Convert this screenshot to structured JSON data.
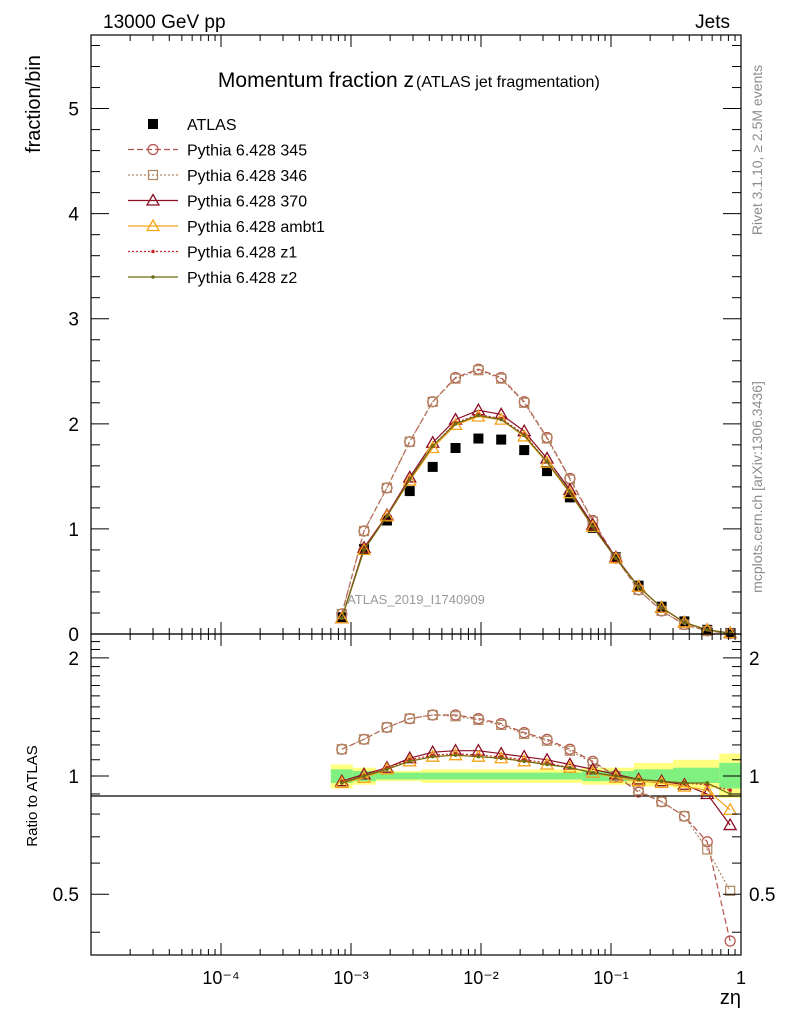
{
  "header": {
    "energy_label": "13000 GeV pp",
    "category_label": "Jets"
  },
  "side_labels": {
    "rivet": "Rivet 3.1.10, ≥ 2.5M events",
    "mcplots": "mcplots.cern.ch [arXiv:1306.3436]"
  },
  "watermark": "ATLAS_2019_I1740909",
  "chart_data": [
    {
      "type": "scatter",
      "panel": "main",
      "title": "Momentum fraction z",
      "subtitle": "(ATLAS jet fragmentation)",
      "xlabel": "zη",
      "ylabel": "fraction/bin",
      "x_scale": "log",
      "xlim": [
        1e-05,
        1
      ],
      "ylim": [
        0,
        5.7
      ],
      "x_tick_labels": [
        "10⁻⁴",
        "10⁻³",
        "10⁻²",
        "10⁻¹",
        "1"
      ],
      "y_tick_labels": [
        "0",
        "1",
        "2",
        "3",
        "4",
        "5"
      ],
      "legend_position": "top-left",
      "x": [
        0.00085,
        0.00126,
        0.00189,
        0.00283,
        0.00425,
        0.00637,
        0.00955,
        0.0143,
        0.0215,
        0.0322,
        0.0483,
        0.0724,
        0.109,
        0.163,
        0.245,
        0.367,
        0.55,
        0.825
      ],
      "series": [
        {
          "name": "ATLAS",
          "color": "#000000",
          "marker": "square-filled",
          "line": "none",
          "values": [
            0.16,
            0.81,
            1.08,
            1.36,
            1.59,
            1.77,
            1.86,
            1.85,
            1.75,
            1.55,
            1.3,
            1.01,
            0.73,
            0.46,
            0.26,
            0.12,
            0.04,
            0.01
          ]
        },
        {
          "name": "Pythia 6.428 345",
          "color": "#b5524b",
          "marker": "circle-open",
          "line": "dashed",
          "values": [
            0.19,
            0.98,
            1.39,
            1.83,
            2.21,
            2.44,
            2.52,
            2.44,
            2.21,
            1.87,
            1.48,
            1.08,
            0.72,
            0.42,
            0.22,
            0.09,
            0.03,
            0.004
          ]
        },
        {
          "name": "Pythia 6.428 346",
          "color": "#b08860",
          "marker": "square-open",
          "line": "dotted",
          "values": [
            0.19,
            0.98,
            1.39,
            1.83,
            2.21,
            2.43,
            2.51,
            2.43,
            2.2,
            1.86,
            1.47,
            1.07,
            0.72,
            0.42,
            0.22,
            0.09,
            0.03,
            0.005
          ]
        },
        {
          "name": "Pythia 6.428 370",
          "color": "#8b0e24",
          "marker": "triangle-open",
          "line": "solid",
          "values": [
            0.15,
            0.82,
            1.13,
            1.49,
            1.82,
            2.04,
            2.13,
            2.09,
            1.93,
            1.67,
            1.37,
            1.04,
            0.73,
            0.45,
            0.25,
            0.11,
            0.04,
            0.008
          ]
        },
        {
          "name": "Pythia 6.428 ambt1",
          "color": "#f5a31a",
          "marker": "triangle-open",
          "line": "solid",
          "values": [
            0.15,
            0.8,
            1.12,
            1.46,
            1.77,
            1.99,
            2.07,
            2.04,
            1.88,
            1.63,
            1.34,
            1.02,
            0.72,
            0.45,
            0.25,
            0.11,
            0.04,
            0.008
          ]
        },
        {
          "name": "Pythia 6.428 z1",
          "color": "#c62828",
          "marker": "dot",
          "line": "dotted",
          "values": [
            0.15,
            0.81,
            1.13,
            1.48,
            1.79,
            2.01,
            2.09,
            2.05,
            1.9,
            1.64,
            1.35,
            1.02,
            0.72,
            0.45,
            0.25,
            0.11,
            0.04,
            0.009
          ]
        },
        {
          "name": "Pythia 6.428 z2",
          "color": "#6b6b10",
          "marker": "dot",
          "line": "solid",
          "values": [
            0.15,
            0.8,
            1.12,
            1.47,
            1.79,
            2.0,
            2.08,
            2.04,
            1.89,
            1.64,
            1.35,
            1.02,
            0.72,
            0.45,
            0.25,
            0.11,
            0.04,
            0.009
          ]
        }
      ]
    },
    {
      "type": "scatter",
      "panel": "ratio",
      "ylabel": "Ratio to ATLAS",
      "x_scale": "log",
      "xlim": [
        1e-05,
        1
      ],
      "ylim": [
        0.35,
        2.3
      ],
      "y_tick_labels": [
        "0.5",
        "1",
        "2"
      ],
      "x": [
        0.00085,
        0.00126,
        0.00189,
        0.00283,
        0.00425,
        0.00637,
        0.00955,
        0.0143,
        0.0215,
        0.0322,
        0.0483,
        0.0724,
        0.109,
        0.163,
        0.245,
        0.367,
        0.55,
        0.825
      ],
      "bands": [
        {
          "color": "#ffff80",
          "bins": [
            [
              0.0007,
              0.00103,
              0.93,
              1.07
            ],
            [
              0.00103,
              0.00155,
              0.95,
              1.05
            ],
            [
              0.00155,
              0.0035,
              0.97,
              1.03
            ],
            [
              0.0035,
              0.06,
              0.96,
              1.04
            ],
            [
              0.06,
              0.15,
              0.95,
              1.05
            ],
            [
              0.15,
              0.3,
              0.94,
              1.08
            ],
            [
              0.3,
              0.68,
              0.93,
              1.1
            ],
            [
              0.68,
              1.0,
              0.88,
              1.14
            ]
          ]
        },
        {
          "color": "#80f080",
          "bins": [
            [
              0.0007,
              0.00103,
              0.96,
              1.04
            ],
            [
              0.00103,
              0.00155,
              0.97,
              1.03
            ],
            [
              0.00155,
              0.0035,
              0.98,
              1.02
            ],
            [
              0.0035,
              0.06,
              0.98,
              1.02
            ],
            [
              0.06,
              0.15,
              0.97,
              1.03
            ],
            [
              0.15,
              0.3,
              0.97,
              1.04
            ],
            [
              0.3,
              0.68,
              0.96,
              1.05
            ],
            [
              0.68,
              1.0,
              0.93,
              1.08
            ]
          ]
        }
      ],
      "series": [
        {
          "name": "Pythia 6.428 345",
          "values": [
            1.17,
            1.24,
            1.33,
            1.4,
            1.43,
            1.43,
            1.4,
            1.36,
            1.29,
            1.24,
            1.17,
            1.09,
            1.0,
            0.91,
            0.86,
            0.79,
            0.68,
            0.38
          ]
        },
        {
          "name": "Pythia 6.428 346",
          "values": [
            1.17,
            1.24,
            1.33,
            1.4,
            1.43,
            1.42,
            1.39,
            1.35,
            1.28,
            1.23,
            1.16,
            1.08,
            1.0,
            0.92,
            0.86,
            0.79,
            0.65,
            0.51
          ]
        },
        {
          "name": "Pythia 6.428 370",
          "values": [
            0.97,
            1.01,
            1.05,
            1.11,
            1.15,
            1.16,
            1.16,
            1.14,
            1.12,
            1.1,
            1.07,
            1.04,
            1.01,
            0.98,
            0.97,
            0.95,
            0.9,
            0.75
          ]
        },
        {
          "name": "Pythia 6.428 ambt1",
          "values": [
            0.96,
            0.99,
            1.04,
            1.09,
            1.12,
            1.13,
            1.12,
            1.11,
            1.09,
            1.07,
            1.05,
            1.02,
            0.99,
            0.97,
            0.96,
            0.94,
            0.92,
            0.82
          ]
        },
        {
          "name": "Pythia 6.428 z1",
          "values": [
            0.97,
            1.0,
            1.05,
            1.1,
            1.13,
            1.14,
            1.13,
            1.12,
            1.1,
            1.08,
            1.05,
            1.02,
            1.0,
            0.98,
            0.97,
            0.96,
            0.95,
            0.92
          ]
        },
        {
          "name": "Pythia 6.428 z2",
          "values": [
            0.96,
            1.0,
            1.04,
            1.09,
            1.12,
            1.13,
            1.12,
            1.11,
            1.09,
            1.07,
            1.05,
            1.02,
            1.0,
            0.98,
            0.97,
            0.96,
            0.96,
            0.9
          ]
        }
      ]
    }
  ]
}
